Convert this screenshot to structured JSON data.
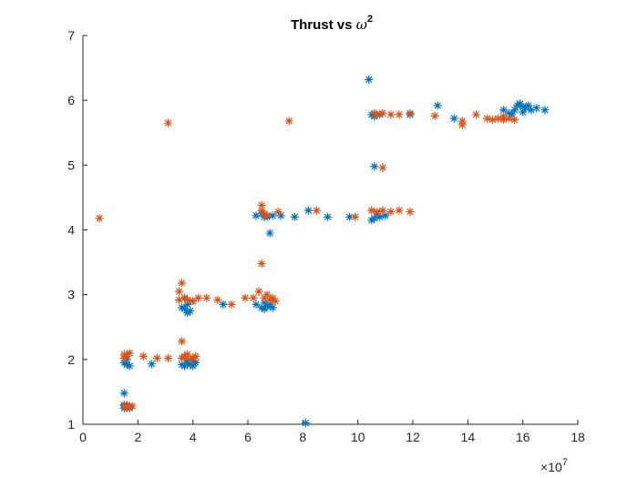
{
  "chart_data": {
    "type": "scatter",
    "title": "Thrust vs ",
    "title_symbol": "ω",
    "title_exponent": "2",
    "xlabel": "",
    "ylabel": "",
    "xlim": [
      0,
      18
    ],
    "ylim": [
      1,
      7
    ],
    "x_exponent_label": "×10",
    "x_exponent_power": "7",
    "x_ticks": [
      "0",
      "2",
      "4",
      "6",
      "8",
      "10",
      "12",
      "14",
      "16",
      "18"
    ],
    "y_ticks": [
      "1",
      "2",
      "3",
      "4",
      "5",
      "6",
      "7"
    ],
    "grid": false,
    "legend": "none",
    "marker": "asterisk",
    "series": [
      {
        "color": "#0072BD",
        "points": [
          [
            1.5,
            1.48
          ],
          [
            1.5,
            1.25
          ],
          [
            1.6,
            1.28
          ],
          [
            1.5,
            1.3
          ],
          [
            1.7,
            1.25
          ],
          [
            1.5,
            1.95
          ],
          [
            1.6,
            1.92
          ],
          [
            1.7,
            1.9
          ],
          [
            1.6,
            2.0
          ],
          [
            2.5,
            1.93
          ],
          [
            3.6,
            1.92
          ],
          [
            3.7,
            1.9
          ],
          [
            3.8,
            1.95
          ],
          [
            3.9,
            1.92
          ],
          [
            4.0,
            1.9
          ],
          [
            4.1,
            1.95
          ],
          [
            3.8,
            1.98
          ],
          [
            4.0,
            1.98
          ],
          [
            3.6,
            2.8
          ],
          [
            3.7,
            2.78
          ],
          [
            3.8,
            2.85
          ],
          [
            3.9,
            2.75
          ],
          [
            4.0,
            2.9
          ],
          [
            3.8,
            2.72
          ],
          [
            3.7,
            2.95
          ],
          [
            5.1,
            2.85
          ],
          [
            6.3,
            2.85
          ],
          [
            6.5,
            2.8
          ],
          [
            6.6,
            2.78
          ],
          [
            6.7,
            2.82
          ],
          [
            6.9,
            2.8
          ],
          [
            6.6,
            2.88
          ],
          [
            6.8,
            2.85
          ],
          [
            6.3,
            4.22
          ],
          [
            6.5,
            4.25
          ],
          [
            6.7,
            4.2
          ],
          [
            6.8,
            3.95
          ],
          [
            6.6,
            4.2
          ],
          [
            6.9,
            4.22
          ],
          [
            7.2,
            4.22
          ],
          [
            7.7,
            4.2
          ],
          [
            8.2,
            4.3
          ],
          [
            8.9,
            4.2
          ],
          [
            9.7,
            4.2
          ],
          [
            10.5,
            4.15
          ],
          [
            10.6,
            4.18
          ],
          [
            10.8,
            4.2
          ],
          [
            11.0,
            4.22
          ],
          [
            10.7,
            4.25
          ],
          [
            10.6,
            4.98
          ],
          [
            10.4,
            6.32
          ],
          [
            10.5,
            5.78
          ],
          [
            10.6,
            5.75
          ],
          [
            10.8,
            5.78
          ],
          [
            11.9,
            5.78
          ],
          [
            12.9,
            5.92
          ],
          [
            13.5,
            5.72
          ],
          [
            15.3,
            5.85
          ],
          [
            15.5,
            5.8
          ],
          [
            15.7,
            5.85
          ],
          [
            15.8,
            5.92
          ],
          [
            15.9,
            5.95
          ],
          [
            16.0,
            5.9
          ],
          [
            16.1,
            5.88
          ],
          [
            16.2,
            5.92
          ],
          [
            16.3,
            5.85
          ],
          [
            16.5,
            5.88
          ],
          [
            16.8,
            5.85
          ],
          [
            15.6,
            5.78
          ],
          [
            16.0,
            5.82
          ],
          [
            8.1,
            1.02
          ]
        ]
      },
      {
        "color": "#D95319",
        "points": [
          [
            0.6,
            4.18
          ],
          [
            3.1,
            5.65
          ],
          [
            7.5,
            5.68
          ],
          [
            1.5,
            1.28
          ],
          [
            1.6,
            1.3
          ],
          [
            1.7,
            1.28
          ],
          [
            1.8,
            1.28
          ],
          [
            1.6,
            1.25
          ],
          [
            1.5,
            2.08
          ],
          [
            1.5,
            2.02
          ],
          [
            1.6,
            2.05
          ],
          [
            1.7,
            2.1
          ],
          [
            2.2,
            2.05
          ],
          [
            2.7,
            2.02
          ],
          [
            3.1,
            2.02
          ],
          [
            3.6,
            2.02
          ],
          [
            3.6,
            2.28
          ],
          [
            3.7,
            2.05
          ],
          [
            3.8,
            2.08
          ],
          [
            3.9,
            2.0
          ],
          [
            4.0,
            2.02
          ],
          [
            4.1,
            2.05
          ],
          [
            3.5,
            2.92
          ],
          [
            3.5,
            3.05
          ],
          [
            3.6,
            3.18
          ],
          [
            3.7,
            2.95
          ],
          [
            3.8,
            2.92
          ],
          [
            4.0,
            2.9
          ],
          [
            4.2,
            2.95
          ],
          [
            4.5,
            2.95
          ],
          [
            4.9,
            2.92
          ],
          [
            5.4,
            2.85
          ],
          [
            5.9,
            2.95
          ],
          [
            6.2,
            2.95
          ],
          [
            6.4,
            3.05
          ],
          [
            6.5,
            3.48
          ],
          [
            6.6,
            2.95
          ],
          [
            6.7,
            3.0
          ],
          [
            6.8,
            2.92
          ],
          [
            6.9,
            2.95
          ],
          [
            7.0,
            2.9
          ],
          [
            6.5,
            4.3
          ],
          [
            6.5,
            4.38
          ],
          [
            6.6,
            4.25
          ],
          [
            6.7,
            4.22
          ],
          [
            7.1,
            4.28
          ],
          [
            8.5,
            4.3
          ],
          [
            9.9,
            4.2
          ],
          [
            10.5,
            4.3
          ],
          [
            10.7,
            4.28
          ],
          [
            10.9,
            4.3
          ],
          [
            11.2,
            4.28
          ],
          [
            11.5,
            4.3
          ],
          [
            11.9,
            4.28
          ],
          [
            10.6,
            5.8
          ],
          [
            10.7,
            5.78
          ],
          [
            10.9,
            5.8
          ],
          [
            11.2,
            5.78
          ],
          [
            11.5,
            5.78
          ],
          [
            11.9,
            5.8
          ],
          [
            12.8,
            5.76
          ],
          [
            13.8,
            5.68
          ],
          [
            13.8,
            5.62
          ],
          [
            14.3,
            5.78
          ],
          [
            14.7,
            5.72
          ],
          [
            14.9,
            5.7
          ],
          [
            15.1,
            5.72
          ],
          [
            15.3,
            5.7
          ],
          [
            15.5,
            5.72
          ],
          [
            15.7,
            5.7
          ],
          [
            15.3,
            5.75
          ],
          [
            10.9,
            4.96
          ]
        ]
      }
    ]
  }
}
